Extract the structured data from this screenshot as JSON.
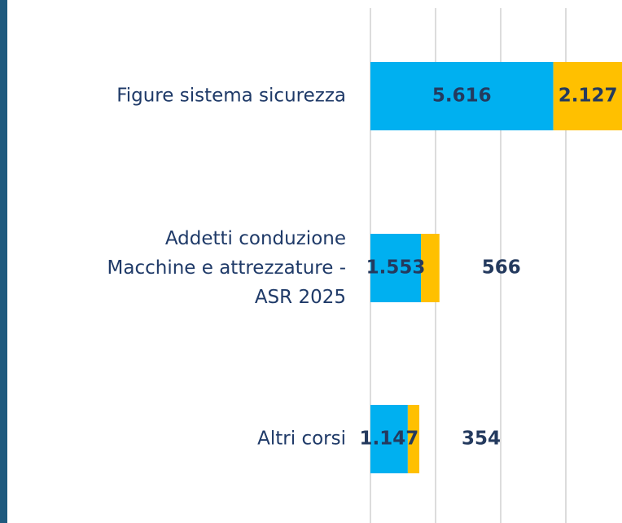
{
  "chart_data": {
    "type": "stacked-barh",
    "categories": [
      "Figure sistema sicurezza",
      "Addetti conduzione\nMacchine e attrezzature -\nASR 2025",
      "Altri corsi"
    ],
    "series": [
      {
        "color": "#00b0f0",
        "values": [
          5616,
          1553,
          1147
        ],
        "value_labels": [
          "5.616",
          "1.553",
          "1.147"
        ]
      },
      {
        "color": "#ffc000",
        "values": [
          2127,
          566,
          354
        ],
        "value_labels": [
          "2.127",
          "566",
          "354"
        ]
      }
    ],
    "xlim": [
      0,
      7725
    ],
    "xticks": [
      0,
      2000,
      4000,
      6000
    ],
    "grid": true
  }
}
